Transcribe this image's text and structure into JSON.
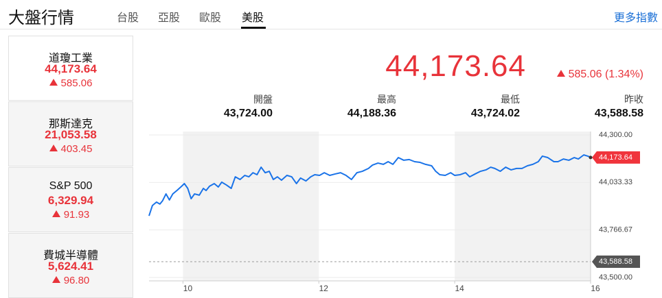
{
  "header": {
    "title": "大盤行情",
    "tabs": [
      "台股",
      "亞股",
      "歐股",
      "美股"
    ],
    "more": "更多指數"
  },
  "indices": [
    {
      "name": "道瓊工業",
      "price": "44,173.64",
      "change": "585.06"
    },
    {
      "name": "那斯達克",
      "price": "21,053.58",
      "change": "403.45"
    },
    {
      "name": "S&P 500",
      "price": "6,329.94",
      "change": "91.93"
    },
    {
      "name": "費城半導體",
      "price": "5,624.41",
      "change": "96.80"
    }
  ],
  "quote": {
    "price": "44,173.64",
    "change": "585.06 (1.34%)",
    "stats": [
      {
        "label": "開盤",
        "value": "43,724.00"
      },
      {
        "label": "最高",
        "value": "44,188.36"
      },
      {
        "label": "最低",
        "value": "43,724.02"
      },
      {
        "label": "昨收",
        "value": "43,588.58"
      }
    ]
  },
  "chart_data": {
    "type": "line",
    "x": [
      9.5,
      9.55,
      9.61,
      9.66,
      9.7,
      9.75,
      9.8,
      9.85,
      9.91,
      9.98,
      10.02,
      10.07,
      10.12,
      10.17,
      10.24,
      10.3,
      10.34,
      10.39,
      10.46,
      10.52,
      10.57,
      10.64,
      10.71,
      10.77,
      10.84,
      10.91,
      10.97,
      11.03,
      11.09,
      11.15,
      11.21,
      11.27,
      11.33,
      11.39,
      11.45,
      11.53,
      11.6,
      11.67,
      11.73,
      11.81,
      11.88,
      11.94,
      12.01,
      12.08,
      12.16,
      12.24,
      12.32,
      12.4,
      12.48,
      12.56,
      12.64,
      12.73,
      12.79,
      12.87,
      12.95,
      13.02,
      13.09,
      13.17,
      13.25,
      13.33,
      13.41,
      13.49,
      13.57,
      13.66,
      13.72,
      13.78,
      13.86,
      13.94,
      14.0,
      14.08,
      14.16,
      14.22,
      14.3,
      14.38,
      14.46,
      14.53,
      14.59,
      14.67,
      14.75,
      14.83,
      14.91,
      14.99,
      15.07,
      15.15,
      15.23,
      15.29,
      15.37,
      15.46,
      15.52,
      15.6,
      15.68,
      15.76,
      15.82,
      15.9,
      15.96,
      16.0
    ],
    "series": [
      {
        "color": "#1a73e8",
        "values": [
          43846,
          43904,
          43923,
          43912,
          43931,
          43969,
          43935,
          43969,
          43988,
          44012,
          44027,
          44000,
          43942,
          43969,
          43962,
          44000,
          43988,
          44012,
          44027,
          44008,
          44035,
          44019,
          44000,
          44065,
          44050,
          44073,
          44065,
          44088,
          44077,
          44119,
          44088,
          44096,
          44050,
          44065,
          44046,
          44073,
          44065,
          44027,
          44058,
          44042,
          44065,
          44077,
          44073,
          44088,
          44073,
          44081,
          44088,
          44073,
          44050,
          44088,
          44096,
          44112,
          44131,
          44142,
          44135,
          44150,
          44135,
          44173,
          44158,
          44162,
          44150,
          44146,
          44135,
          44127,
          44096,
          44077,
          44073,
          44088,
          44073,
          44077,
          44088,
          44065,
          44081,
          44096,
          44104,
          44119,
          44112,
          44096,
          44119,
          44104,
          44112,
          44112,
          44127,
          44135,
          44150,
          44181,
          44173,
          44150,
          44150,
          44165,
          44158,
          44173,
          44165,
          44188,
          44181,
          44173.64
        ]
      }
    ],
    "xlim": [
      9.5,
      16
    ],
    "xticks": [
      10,
      12,
      14,
      16
    ],
    "ylim": [
      43500,
      44300
    ],
    "yticks": [
      {
        "value": 44300,
        "label": "44,300.00"
      },
      {
        "value": 44033.33,
        "label": "44,033.33"
      },
      {
        "value": 43766.67,
        "label": "43,766.67"
      },
      {
        "value": 43500,
        "label": "43,500.00"
      }
    ],
    "last": {
      "value": 44173.64,
      "label": "44,173.64"
    },
    "prev_close": {
      "value": 43588.58,
      "label": "43,588.58"
    }
  }
}
